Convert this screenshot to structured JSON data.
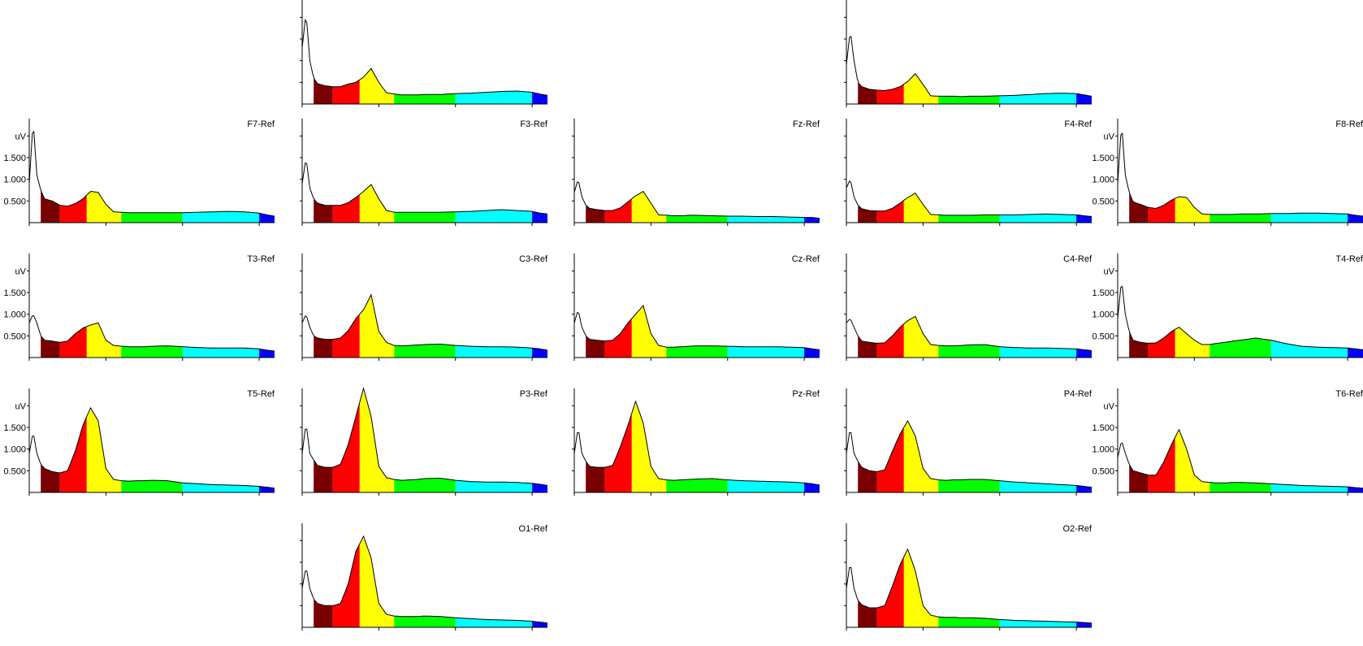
{
  "colors": {
    "background": "#ffffff",
    "axis": "#000000",
    "trace": "#000000",
    "bands": [
      "#7a0000",
      "#ff0000",
      "#ffff00",
      "#00ff00",
      "#00ffff",
      "#0000ff"
    ]
  },
  "chart_data": {
    "type": "area",
    "description_free": true,
    "xlim": [
      0,
      32
    ],
    "ylim": [
      0,
      2.4
    ],
    "y_unit_label": "uV",
    "y_ticks": [
      "0.500",
      "1.000",
      "1.500"
    ],
    "band_edges": [
      0,
      1.5,
      4,
      7.5,
      12,
      20,
      30,
      32
    ],
    "x": [
      0,
      0.5,
      1,
      1.5,
      2,
      3,
      4,
      5,
      6,
      7,
      8,
      9,
      10,
      11,
      12,
      13,
      14,
      15,
      16,
      18,
      20,
      22,
      24,
      26,
      28,
      30,
      31,
      32
    ],
    "panels": [
      {
        "label": "",
        "show_y_labels": false,
        "values": [
          1.3,
          2.1,
          1.0,
          0.6,
          0.47,
          0.42,
          0.4,
          0.4,
          0.46,
          0.5,
          0.62,
          0.82,
          0.5,
          0.26,
          0.23,
          0.21,
          0.21,
          0.21,
          0.22,
          0.22,
          0.24,
          0.25,
          0.27,
          0.29,
          0.3,
          0.27,
          0.23,
          0.2
        ]
      },
      {
        "label": "",
        "show_y_labels": false,
        "values": [
          0.9,
          1.7,
          1.0,
          0.5,
          0.4,
          0.34,
          0.32,
          0.31,
          0.34,
          0.4,
          0.52,
          0.7,
          0.45,
          0.19,
          0.18,
          0.18,
          0.18,
          0.17,
          0.18,
          0.18,
          0.19,
          0.2,
          0.22,
          0.24,
          0.25,
          0.24,
          0.21,
          0.18
        ]
      },
      {
        "label": "F7-Ref",
        "show_y_labels": true,
        "values": [
          0.9,
          2.35,
          1.1,
          0.75,
          0.55,
          0.5,
          0.4,
          0.38,
          0.44,
          0.55,
          0.72,
          0.7,
          0.42,
          0.25,
          0.24,
          0.23,
          0.23,
          0.23,
          0.23,
          0.23,
          0.23,
          0.24,
          0.25,
          0.26,
          0.25,
          0.22,
          0.18,
          0.15
        ]
      },
      {
        "label": "F3-Ref",
        "show_y_labels": false,
        "values": [
          0.9,
          1.5,
          0.8,
          0.55,
          0.45,
          0.4,
          0.4,
          0.4,
          0.46,
          0.58,
          0.72,
          0.88,
          0.55,
          0.28,
          0.24,
          0.24,
          0.24,
          0.24,
          0.24,
          0.24,
          0.25,
          0.26,
          0.28,
          0.3,
          0.28,
          0.26,
          0.22,
          0.2
        ]
      },
      {
        "label": "Fz-Ref",
        "show_y_labels": false,
        "values": [
          0.7,
          1.0,
          0.6,
          0.4,
          0.33,
          0.3,
          0.28,
          0.28,
          0.34,
          0.48,
          0.62,
          0.72,
          0.45,
          0.18,
          0.17,
          0.16,
          0.16,
          0.17,
          0.17,
          0.16,
          0.15,
          0.15,
          0.14,
          0.14,
          0.13,
          0.12,
          0.12,
          0.1
        ]
      },
      {
        "label": "F4-Ref",
        "show_y_labels": false,
        "values": [
          0.8,
          1.0,
          0.6,
          0.4,
          0.32,
          0.28,
          0.27,
          0.27,
          0.33,
          0.45,
          0.58,
          0.68,
          0.42,
          0.19,
          0.18,
          0.17,
          0.17,
          0.17,
          0.17,
          0.18,
          0.18,
          0.18,
          0.19,
          0.2,
          0.19,
          0.18,
          0.16,
          0.14
        ]
      },
      {
        "label": "F8-Ref",
        "show_y_labels": true,
        "values": [
          0.9,
          2.3,
          1.1,
          0.7,
          0.48,
          0.42,
          0.35,
          0.33,
          0.4,
          0.52,
          0.6,
          0.58,
          0.35,
          0.2,
          0.19,
          0.19,
          0.19,
          0.19,
          0.2,
          0.2,
          0.21,
          0.21,
          0.22,
          0.22,
          0.21,
          0.2,
          0.17,
          0.15
        ]
      },
      {
        "label": "T3-Ref",
        "show_y_labels": true,
        "values": [
          0.8,
          1.0,
          0.8,
          0.5,
          0.4,
          0.38,
          0.35,
          0.38,
          0.55,
          0.68,
          0.75,
          0.8,
          0.4,
          0.28,
          0.26,
          0.25,
          0.25,
          0.25,
          0.26,
          0.27,
          0.25,
          0.23,
          0.22,
          0.22,
          0.22,
          0.2,
          0.17,
          0.15
        ]
      },
      {
        "label": "C3-Ref",
        "show_y_labels": false,
        "values": [
          0.8,
          1.0,
          0.7,
          0.5,
          0.45,
          0.42,
          0.42,
          0.45,
          0.62,
          0.9,
          1.1,
          1.45,
          0.6,
          0.35,
          0.28,
          0.27,
          0.28,
          0.29,
          0.3,
          0.31,
          0.28,
          0.26,
          0.25,
          0.25,
          0.24,
          0.22,
          0.2,
          0.17
        ]
      },
      {
        "label": "Cz-Ref",
        "show_y_labels": false,
        "values": [
          0.8,
          1.1,
          0.7,
          0.5,
          0.42,
          0.4,
          0.38,
          0.4,
          0.55,
          0.8,
          1.0,
          1.2,
          0.55,
          0.28,
          0.24,
          0.24,
          0.25,
          0.26,
          0.27,
          0.27,
          0.26,
          0.25,
          0.25,
          0.25,
          0.24,
          0.23,
          0.2,
          0.18
        ]
      },
      {
        "label": "C4-Ref",
        "show_y_labels": false,
        "values": [
          0.8,
          0.9,
          0.7,
          0.5,
          0.38,
          0.35,
          0.33,
          0.34,
          0.5,
          0.7,
          0.85,
          0.95,
          0.55,
          0.3,
          0.28,
          0.27,
          0.27,
          0.28,
          0.29,
          0.3,
          0.25,
          0.23,
          0.22,
          0.22,
          0.21,
          0.2,
          0.18,
          0.16
        ]
      },
      {
        "label": "T4-Ref",
        "show_y_labels": true,
        "values": [
          0.9,
          1.8,
          1.0,
          0.6,
          0.4,
          0.35,
          0.33,
          0.34,
          0.45,
          0.6,
          0.7,
          0.55,
          0.4,
          0.3,
          0.3,
          0.33,
          0.35,
          0.38,
          0.4,
          0.45,
          0.4,
          0.32,
          0.26,
          0.24,
          0.23,
          0.22,
          0.2,
          0.18
        ]
      },
      {
        "label": "T5-Ref",
        "show_y_labels": true,
        "values": [
          0.9,
          1.4,
          0.9,
          0.65,
          0.55,
          0.48,
          0.45,
          0.5,
          0.95,
          1.55,
          1.95,
          1.65,
          0.55,
          0.3,
          0.27,
          0.26,
          0.27,
          0.27,
          0.28,
          0.27,
          0.22,
          0.2,
          0.18,
          0.17,
          0.16,
          0.14,
          0.12,
          0.1
        ]
      },
      {
        "label": "P3-Ref",
        "show_y_labels": false,
        "values": [
          0.9,
          1.6,
          0.9,
          0.75,
          0.62,
          0.58,
          0.58,
          0.65,
          1.1,
          1.75,
          2.4,
          1.75,
          0.6,
          0.34,
          0.3,
          0.28,
          0.29,
          0.3,
          0.32,
          0.33,
          0.28,
          0.25,
          0.24,
          0.24,
          0.23,
          0.21,
          0.19,
          0.16
        ]
      },
      {
        "label": "Pz-Ref",
        "show_y_labels": false,
        "values": [
          0.9,
          1.5,
          0.9,
          0.72,
          0.6,
          0.58,
          0.58,
          0.62,
          1.05,
          1.55,
          2.1,
          1.6,
          0.6,
          0.32,
          0.29,
          0.28,
          0.29,
          0.3,
          0.31,
          0.32,
          0.29,
          0.27,
          0.26,
          0.25,
          0.24,
          0.22,
          0.2,
          0.17
        ]
      },
      {
        "label": "P4-Ref",
        "show_y_labels": false,
        "values": [
          0.9,
          1.5,
          0.9,
          0.72,
          0.58,
          0.5,
          0.48,
          0.52,
          0.95,
          1.35,
          1.65,
          1.3,
          0.55,
          0.32,
          0.29,
          0.28,
          0.29,
          0.29,
          0.3,
          0.3,
          0.27,
          0.24,
          0.22,
          0.2,
          0.18,
          0.16,
          0.14,
          0.12
        ]
      },
      {
        "label": "T6-Ref",
        "show_y_labels": true,
        "values": [
          0.8,
          1.2,
          0.9,
          0.65,
          0.5,
          0.45,
          0.4,
          0.4,
          0.7,
          1.1,
          1.45,
          1.0,
          0.4,
          0.25,
          0.23,
          0.22,
          0.22,
          0.23,
          0.23,
          0.22,
          0.2,
          0.18,
          0.16,
          0.15,
          0.14,
          0.13,
          0.11,
          0.1
        ]
      },
      {
        "label": "O1-Ref",
        "show_y_labels": false,
        "values": [
          0.9,
          1.4,
          0.9,
          0.65,
          0.55,
          0.5,
          0.5,
          0.55,
          1.0,
          1.75,
          2.1,
          1.6,
          0.55,
          0.3,
          0.26,
          0.25,
          0.25,
          0.25,
          0.26,
          0.25,
          0.22,
          0.2,
          0.18,
          0.17,
          0.16,
          0.14,
          0.12,
          0.1
        ]
      },
      {
        "label": "O2-Ref",
        "show_y_labels": false,
        "values": [
          0.9,
          1.5,
          0.9,
          0.62,
          0.52,
          0.45,
          0.45,
          0.5,
          0.95,
          1.45,
          1.8,
          1.3,
          0.5,
          0.28,
          0.24,
          0.23,
          0.23,
          0.22,
          0.22,
          0.21,
          0.18,
          0.16,
          0.15,
          0.14,
          0.13,
          0.12,
          0.11,
          0.1
        ]
      }
    ]
  }
}
